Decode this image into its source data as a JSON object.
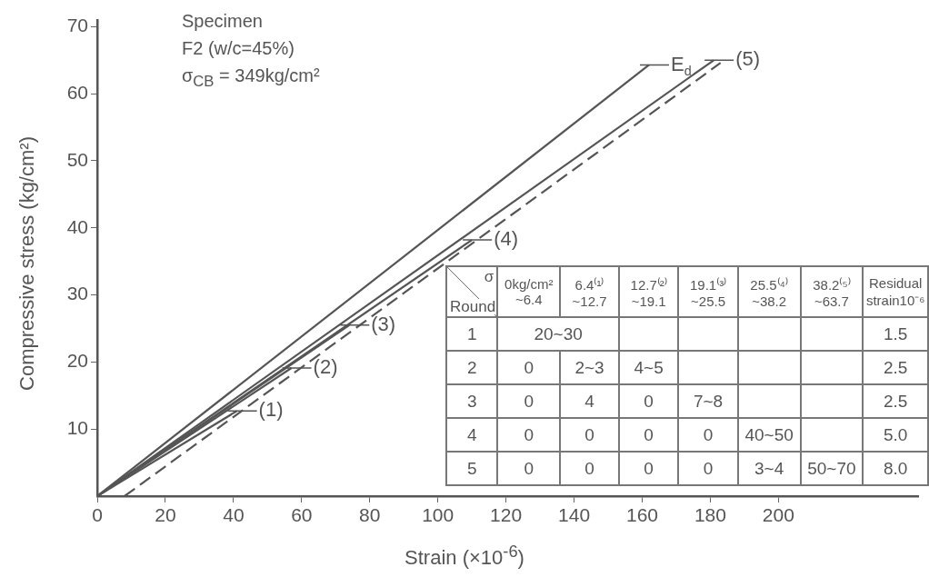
{
  "chart_data": [
    {
      "type": "line",
      "xlabel": "Strain (×10$^{-6}$)",
      "ylabel": "Compressive stress (kg/cm²)",
      "annotations": [
        "Specimen",
        "F2 (w/c=45%)",
        "σ$_{CB}$ = 349kg/cm²"
      ],
      "xlim": [
        0,
        241
      ],
      "ylim": [
        0,
        71
      ],
      "xticks": [
        0,
        20,
        40,
        60,
        80,
        100,
        120,
        140,
        160,
        180,
        200
      ],
      "yticks": [
        10,
        20,
        30,
        40,
        50,
        60,
        70
      ],
      "grid": false,
      "legend": "right",
      "marker": "none",
      "line_style": "solid",
      "series": [
        {
          "name": "E$_{d}$",
          "color": "#555555",
          "x": [
            0,
            162
          ],
          "values": [
            0,
            64.3
          ]
        },
        {
          "name": "(1)",
          "color": "#555555",
          "x": [
            0,
            41
          ],
          "values": [
            0,
            12.7
          ]
        },
        {
          "name": "(2)",
          "color": "#555555",
          "x": [
            0,
            57
          ],
          "values": [
            0,
            19.1
          ]
        },
        {
          "name": "(3)",
          "color": "#555555",
          "x": [
            0,
            74
          ],
          "values": [
            0,
            25.5
          ]
        },
        {
          "name": "(4)",
          "color": "#555555",
          "x": [
            0,
            110
          ],
          "values": [
            0,
            38.2
          ]
        },
        {
          "name": "(5)",
          "color": "#555555",
          "x": [
            0,
            181
          ],
          "values": [
            0,
            65
          ]
        },
        {
          "color": "#555555",
          "line_style": "dashed",
          "x": [
            8,
            183
          ],
          "values": [
            0,
            64.6
          ]
        }
      ]
    },
    {
      "type": "heatmap",
      "xlabel": "σ",
      "ylabel": "Round",
      "cells": [
        [
          null,
          null,
          null,
          null,
          null,
          null,
          null
        ],
        [
          null,
          null,
          null,
          null,
          null,
          null,
          null
        ],
        [
          null,
          null,
          null,
          null,
          null,
          null,
          null
        ],
        [
          null,
          null,
          null,
          null,
          null,
          null,
          null
        ],
        [
          null,
          null,
          null,
          null,
          null,
          null,
          null
        ]
      ],
      "categories": [
        "0kg/cm² ~6.4",
        "6.4⁽¹⁾ ~12.7",
        "12.7⁽²⁾ ~19.1",
        "19.1⁽³⁾ ~25.5",
        "25.5⁽⁴⁾ ~38.2",
        "38.2⁽⁵⁾ ~63.7",
        "Residual strain10⁻⁶"
      ],
      "y_categories": [
        "1",
        "2",
        "3",
        "4",
        "5"
      ],
      "cell_labels": [
        [
          "20~30",
          null,
          null,
          null,
          null,
          null,
          "1.5"
        ],
        [
          "0",
          "2~3",
          "4~5",
          null,
          null,
          null,
          "2.5"
        ],
        [
          "0",
          "4",
          "0",
          "7~8",
          null,
          null,
          "2.5"
        ],
        [
          "0",
          "0",
          "0",
          "0",
          "40~50",
          null,
          "5.0"
        ],
        [
          "0",
          "0",
          "0",
          "0",
          "3~4",
          "50~70",
          "8.0"
        ]
      ]
    }
  ]
}
